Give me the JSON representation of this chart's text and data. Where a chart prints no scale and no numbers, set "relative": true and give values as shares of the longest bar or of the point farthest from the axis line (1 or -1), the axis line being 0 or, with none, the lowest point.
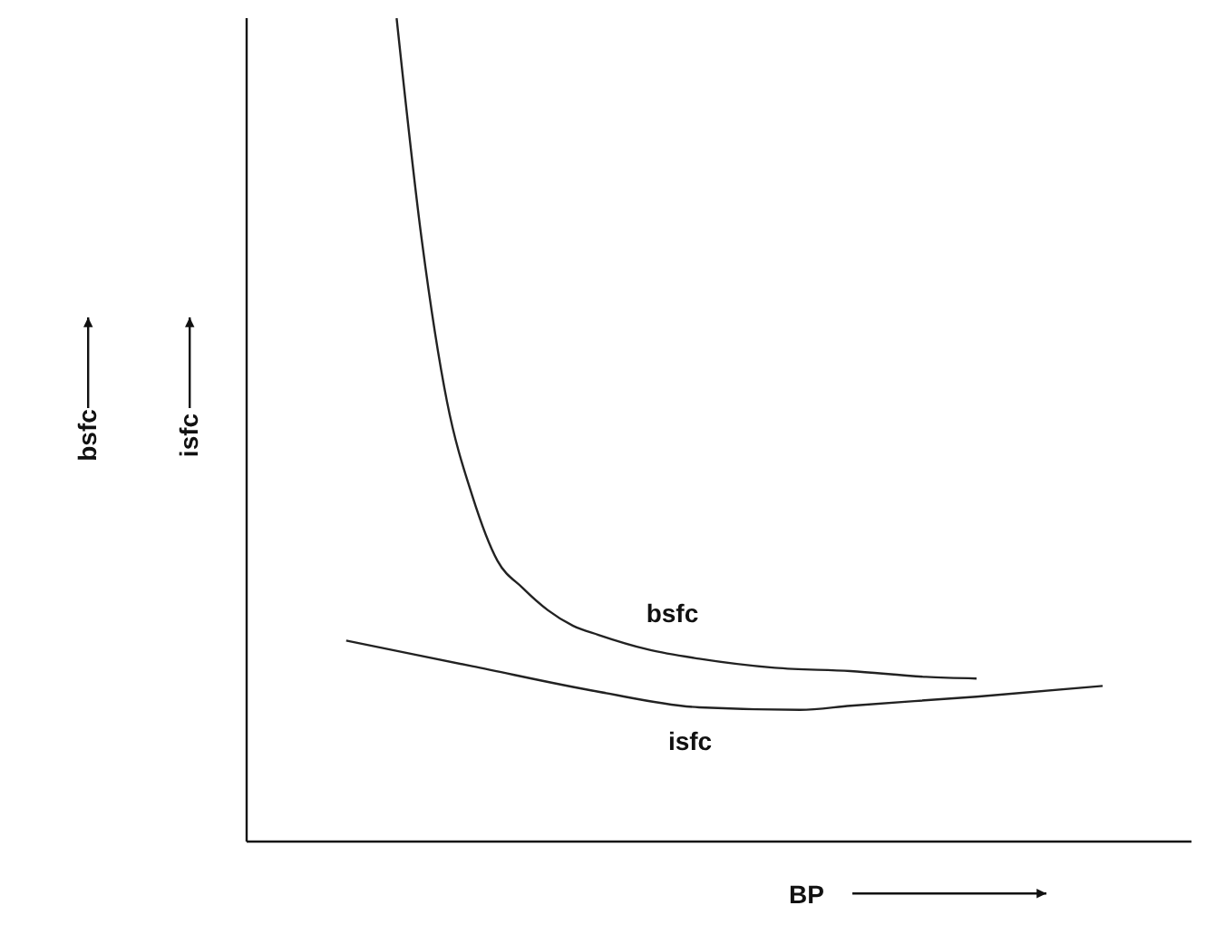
{
  "chart_data": {
    "type": "line",
    "xlabel": "BP",
    "annotations": [
      "bsfc",
      "isfc"
    ],
    "relative": true,
    "marker": "none",
    "line_style": "solid",
    "categories": [
      null,
      null,
      null,
      null,
      null,
      null,
      null,
      null,
      null,
      null,
      null,
      null,
      null,
      null,
      null,
      null,
      null,
      null,
      null,
      null,
      null,
      null,
      null,
      null,
      null,
      null,
      null,
      null,
      null,
      null,
      null
    ],
    "series": [
      {
        "name": "bsfc",
        "color": "#222222",
        "values": [
          null,
          null,
          1,
          0.73,
          0.534,
          0.42,
          0.341,
          0.308,
          0.281,
          0.262,
          0.251,
          null,
          0.233,
          null,
          0.222,
          null,
          null,
          0.211,
          null,
          null,
          0.207,
          null,
          null,
          0.2,
          null,
          0.198,
          null,
          null,
          null,
          null,
          null
        ]
      },
      {
        "name": "isfc",
        "color": "#222222",
        "values": [
          0.244,
          null,
          null,
          null,
          null,
          0.213,
          null,
          null,
          null,
          null,
          0.182,
          null,
          null,
          null,
          0.163,
          null,
          null,
          null,
          0.16,
          null,
          0.165,
          null,
          null,
          null,
          null,
          0.176,
          null,
          null,
          null,
          null,
          0.189
        ]
      }
    ]
  }
}
